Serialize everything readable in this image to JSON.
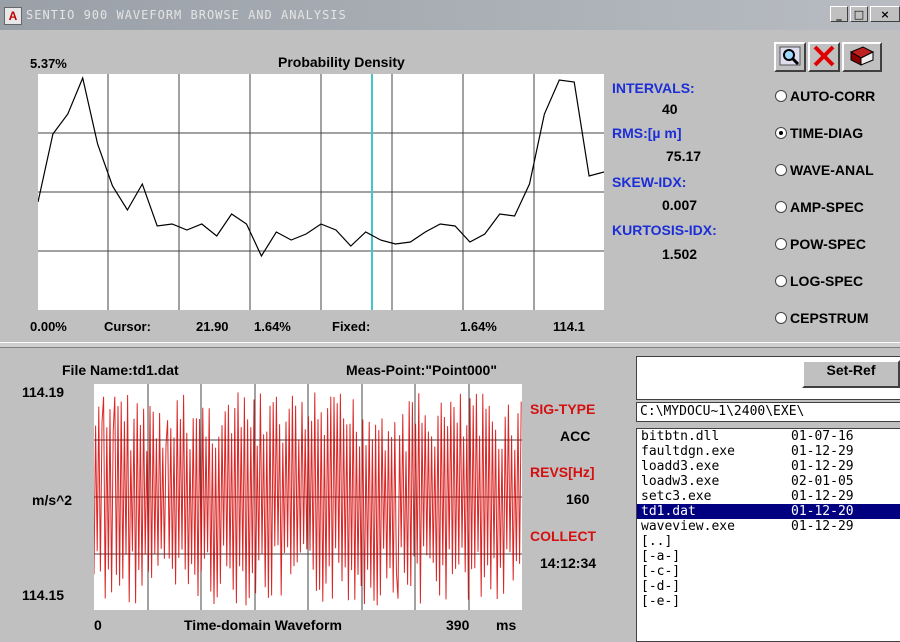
{
  "window": {
    "title": "SENTIO 900 WAVEFORM BROWSE AND ANALYSIS",
    "icon": "A"
  },
  "colors": {
    "plot_bg": "#ffffff",
    "density_line": "#000000",
    "cursor": "#40c8c8",
    "wave": "#d40000",
    "label_blue": "#1c2ed6",
    "label_red": "#d41010"
  },
  "density": {
    "title": "Probability Density",
    "ymax_label": "5.37%",
    "stats": [
      {
        "label": "INTERVALS:",
        "value": "40"
      },
      {
        "label": "RMS:[µ m]",
        "value": "75.17"
      },
      {
        "label": "SKEW-IDX:",
        "value": "0.007"
      },
      {
        "label": "KURTOSIS-IDX:",
        "value": "1.502"
      }
    ],
    "footer": {
      "left": "0.00%",
      "cursor_label": "Cursor:",
      "cursor_value": "21.90",
      "cursor_pct": "1.64%",
      "fixed_label": "Fixed:",
      "fixed_pct": "1.64%",
      "right": "114.1"
    }
  },
  "toolbar": {
    "zoom_icon": "magnifier-icon",
    "close_icon": "red-x-icon",
    "book_icon": "book-icon"
  },
  "analysis_modes": [
    {
      "label": "AUTO-CORR",
      "selected": false
    },
    {
      "label": "TIME-DIAG",
      "selected": true
    },
    {
      "label": "WAVE-ANAL",
      "selected": false
    },
    {
      "label": "AMP-SPEC",
      "selected": false
    },
    {
      "label": "POW-SPEC",
      "selected": false
    },
    {
      "label": "LOG-SPEC",
      "selected": false
    },
    {
      "label": "CEPSTRUM",
      "selected": false
    }
  ],
  "waveform": {
    "file_name": "File Name:td1.dat",
    "meas_point": "Meas-Point:\"Point000\"",
    "y_top": "114.19",
    "y_unit": "m/s^2",
    "y_bottom": "114.15",
    "x_start": "0",
    "x_title": "Time-domain Waveform",
    "x_end": "390",
    "x_unit": "ms",
    "sig_type_label": "SIG-TYPE",
    "sig_type_value": "ACC",
    "revs_label": "REVS[Hz]",
    "revs_value": "160",
    "collect_label": "COLLECT",
    "collect_value": "14:12:34"
  },
  "files": {
    "set_ref_label": "Set-Ref",
    "path": "C:\\MYDOCU~1\\2400\\EXE\\",
    "items": [
      {
        "name": "bitbtn.dll",
        "date": "01-07-16"
      },
      {
        "name": "faultdgn.exe",
        "date": "01-12-29"
      },
      {
        "name": "loadd3.exe",
        "date": "01-12-29"
      },
      {
        "name": "loadw3.exe",
        "date": "02-01-05"
      },
      {
        "name": "setc3.exe",
        "date": "01-12-29"
      },
      {
        "name": "td1.dat",
        "date": "01-12-20"
      },
      {
        "name": "waveview.exe",
        "date": "01-12-29"
      },
      {
        "name": "[..]",
        "date": ""
      },
      {
        "name": "[-a-]",
        "date": ""
      },
      {
        "name": "[-c-]",
        "date": ""
      },
      {
        "name": "[-d-]",
        "date": ""
      },
      {
        "name": "[-e-]",
        "date": ""
      }
    ],
    "selected_index": 5
  }
}
